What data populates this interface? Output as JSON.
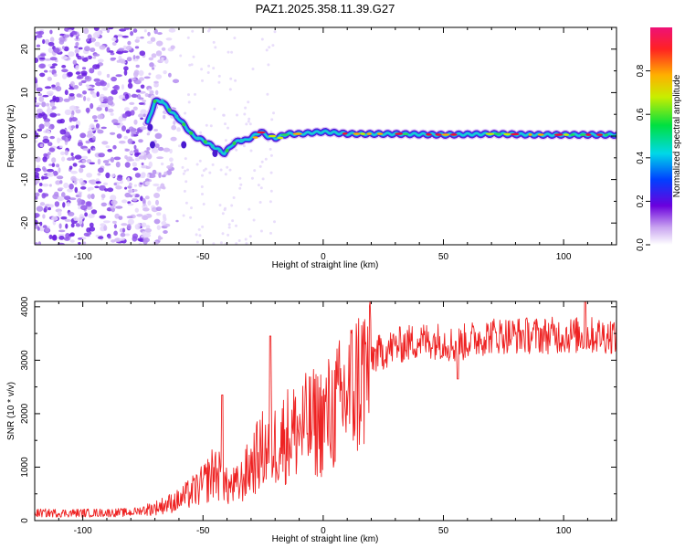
{
  "title": "PAZ1.2025.358.11.39.G27",
  "colorbar_ticks": [
    "0.0",
    "0.2",
    "0.4",
    "0.6",
    "0.8"
  ],
  "colorbar_label": "Normalized spectral amplitude",
  "colors": {
    "snr_line": "#ee2222",
    "ridge_low": "#5500cc",
    "ridge_mid": "#00cccc",
    "ridge_high": "#ee1133",
    "noise": "#8844ee"
  },
  "chart_data": [
    {
      "type": "heatmap",
      "xlabel": "Height of straight line (km)",
      "ylabel": "Frequency (Hz)",
      "xlim": [
        -120,
        122
      ],
      "ylim": [
        -25,
        25
      ],
      "x_ticks": [
        -100,
        -50,
        0,
        50,
        100
      ],
      "y_ticks": [
        -20,
        -10,
        0,
        10,
        20
      ],
      "ridge": {
        "x": [
          -73,
          -70,
          -67,
          -64,
          -60,
          -57,
          -54,
          -50,
          -47,
          -44,
          -41,
          -38,
          -35,
          -32,
          -29,
          -26,
          -23,
          -20,
          -15,
          -10,
          0,
          10,
          30,
          50,
          70,
          90,
          110,
          122
        ],
        "y": [
          3,
          8,
          8,
          6,
          4,
          2,
          0,
          -1,
          -2,
          -3,
          -4,
          -2,
          -1,
          -1,
          0,
          1,
          0,
          -0.5,
          0.5,
          0.5,
          1,
          0.5,
          0.5,
          0.3,
          0.5,
          0.3,
          0.3,
          0.3
        ]
      },
      "noise_region_x": [
        -120,
        -60
      ],
      "colorbar_range": [
        0.0,
        1.0
      ]
    },
    {
      "type": "line",
      "xlabel": "Height of straight line (km)",
      "ylabel": "SNR (10 * v/v)",
      "xlim": [
        -120,
        122
      ],
      "ylim": [
        0,
        4100
      ],
      "x_ticks": [
        -100,
        -50,
        0,
        50,
        100
      ],
      "y_ticks": [
        0,
        1000,
        2000,
        3000,
        4000
      ],
      "envelope": {
        "x": [
          -120,
          -100,
          -80,
          -70,
          -60,
          -50,
          -45,
          -40,
          -35,
          -30,
          -25,
          -20,
          -15,
          -10,
          -5,
          0,
          5,
          10,
          15,
          20,
          25,
          30,
          40,
          50,
          55,
          60,
          70,
          80,
          90,
          100,
          110,
          122
        ],
        "y": [
          150,
          150,
          160,
          250,
          400,
          700,
          1000,
          650,
          700,
          1100,
          1400,
          1500,
          1700,
          1800,
          1900,
          2000,
          2200,
          2500,
          2800,
          3100,
          3200,
          3300,
          3400,
          3400,
          3300,
          3400,
          3500,
          3500,
          3500,
          3500,
          3500,
          3500
        ]
      },
      "spikes": [
        {
          "x": -42,
          "y": 2350
        },
        {
          "x": -22,
          "y": 3450
        },
        {
          "x": 109,
          "y": 4100
        }
      ]
    }
  ]
}
